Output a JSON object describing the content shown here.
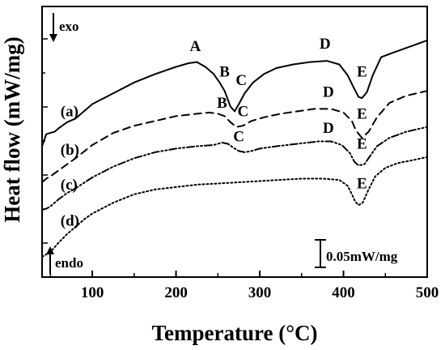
{
  "chart_data": {
    "type": "line",
    "title": "",
    "xlabel": "Temperature (°C)",
    "ylabel": "Heat flow (mW/mg)",
    "xlim": [
      40,
      500
    ],
    "x_ticks": [
      "100",
      "200",
      "300",
      "400",
      "500"
    ],
    "x_tick_values": [
      100,
      200,
      300,
      400,
      500
    ],
    "y_tick_labels_shown": false,
    "grid": false,
    "legend": "none",
    "annotations": {
      "exo_label": "exo",
      "endo_label": "endo",
      "scale_bar_label": "0.05mW/mg",
      "scale_bar_value_mw_per_mg": 0.05
    },
    "series": [
      {
        "name": "(a)",
        "style": "solid",
        "x": [
          40,
          45,
          50,
          55,
          60,
          70,
          80,
          100,
          125,
          150,
          175,
          200,
          215,
          225,
          235,
          245,
          252,
          258,
          265,
          270,
          275,
          282,
          292,
          305,
          320,
          340,
          360,
          380,
          395,
          405,
          412,
          418,
          422,
          428,
          435,
          445,
          460,
          480,
          500
        ],
        "y": [
          0.092,
          0.102,
          0.103,
          0.104,
          0.107,
          0.112,
          0.115,
          0.127,
          0.136,
          0.145,
          0.152,
          0.158,
          0.161,
          0.162,
          0.158,
          0.152,
          0.145,
          0.138,
          0.125,
          0.121,
          0.127,
          0.136,
          0.145,
          0.152,
          0.157,
          0.16,
          0.162,
          0.163,
          0.16,
          0.151,
          0.141,
          0.133,
          0.132,
          0.137,
          0.151,
          0.166,
          0.17,
          0.175,
          0.18
        ]
      },
      {
        "name": "(b)",
        "style": "dashed",
        "x": [
          40,
          45,
          50,
          60,
          70,
          80,
          100,
          125,
          150,
          175,
          200,
          225,
          240,
          250,
          258,
          265,
          272,
          280,
          290,
          305,
          325,
          345,
          365,
          385,
          400,
          410,
          415,
          422,
          430,
          440,
          455,
          475,
          500
        ],
        "y": [
          0.062,
          0.065,
          0.067,
          0.072,
          0.077,
          0.082,
          0.093,
          0.103,
          0.109,
          0.113,
          0.117,
          0.119,
          0.12,
          0.119,
          0.117,
          0.112,
          0.108,
          0.109,
          0.113,
          0.116,
          0.119,
          0.121,
          0.123,
          0.123,
          0.12,
          0.113,
          0.105,
          0.099,
          0.104,
          0.116,
          0.128,
          0.134,
          0.138
        ]
      },
      {
        "name": "(c)",
        "style": "dash-dot-dot",
        "x": [
          40,
          45,
          50,
          60,
          70,
          80,
          100,
          125,
          150,
          175,
          200,
          225,
          245,
          255,
          262,
          268,
          275,
          282,
          290,
          300,
          320,
          345,
          370,
          385,
          398,
          408,
          413,
          418,
          425,
          432,
          440,
          455,
          475,
          500
        ],
        "y": [
          0.039,
          0.04,
          0.042,
          0.048,
          0.053,
          0.057,
          0.066,
          0.075,
          0.082,
          0.087,
          0.09,
          0.092,
          0.093,
          0.095,
          0.094,
          0.091,
          0.088,
          0.087,
          0.088,
          0.09,
          0.092,
          0.094,
          0.096,
          0.096,
          0.093,
          0.086,
          0.079,
          0.076,
          0.077,
          0.084,
          0.092,
          0.099,
          0.104,
          0.108
        ]
      },
      {
        "name": "(d)",
        "style": "dotted",
        "x": [
          40,
          50,
          60,
          70,
          80,
          90,
          100,
          125,
          150,
          175,
          200,
          225,
          250,
          275,
          300,
          325,
          350,
          375,
          395,
          405,
          410,
          414,
          418,
          423,
          430,
          438,
          450,
          465,
          480,
          500
        ],
        "y": [
          0.0,
          0.004,
          0.012,
          0.019,
          0.025,
          0.031,
          0.036,
          0.045,
          0.052,
          0.056,
          0.058,
          0.06,
          0.061,
          0.062,
          0.063,
          0.064,
          0.065,
          0.065,
          0.064,
          0.059,
          0.052,
          0.046,
          0.043,
          0.045,
          0.056,
          0.067,
          0.074,
          0.078,
          0.08,
          0.083
        ]
      }
    ],
    "series_labels": [
      {
        "text": "(a)",
        "x": 62,
        "y": 0.117
      },
      {
        "text": "(b)",
        "x": 62,
        "y": 0.085
      },
      {
        "text": "(c)",
        "x": 62,
        "y": 0.056
      },
      {
        "text": "(d)",
        "x": 62,
        "y": 0.026
      }
    ],
    "peak_labels": [
      {
        "series": "(a)",
        "text": "A",
        "x": 223,
        "y": 0.171
      },
      {
        "series": "(a)",
        "text": "B",
        "x": 258,
        "y": 0.15
      },
      {
        "series": "(a)",
        "text": "C",
        "x": 278,
        "y": 0.143
      },
      {
        "series": "(a)",
        "text": "D",
        "x": 378,
        "y": 0.173
      },
      {
        "series": "(a)",
        "text": "E",
        "x": 422,
        "y": 0.15
      },
      {
        "series": "(b)",
        "text": "B",
        "x": 255,
        "y": 0.124
      },
      {
        "series": "(b)",
        "text": "C",
        "x": 280,
        "y": 0.117
      },
      {
        "series": "(b)",
        "text": "D",
        "x": 382,
        "y": 0.133
      },
      {
        "series": "(b)",
        "text": "E",
        "x": 422,
        "y": 0.115
      },
      {
        "series": "(c)",
        "text": "C",
        "x": 275,
        "y": 0.096
      },
      {
        "series": "(c)",
        "text": "D",
        "x": 382,
        "y": 0.103
      },
      {
        "series": "(c)",
        "text": "E",
        "x": 422,
        "y": 0.09
      },
      {
        "series": "(d)",
        "text": "E",
        "x": 422,
        "y": 0.057
      }
    ]
  }
}
